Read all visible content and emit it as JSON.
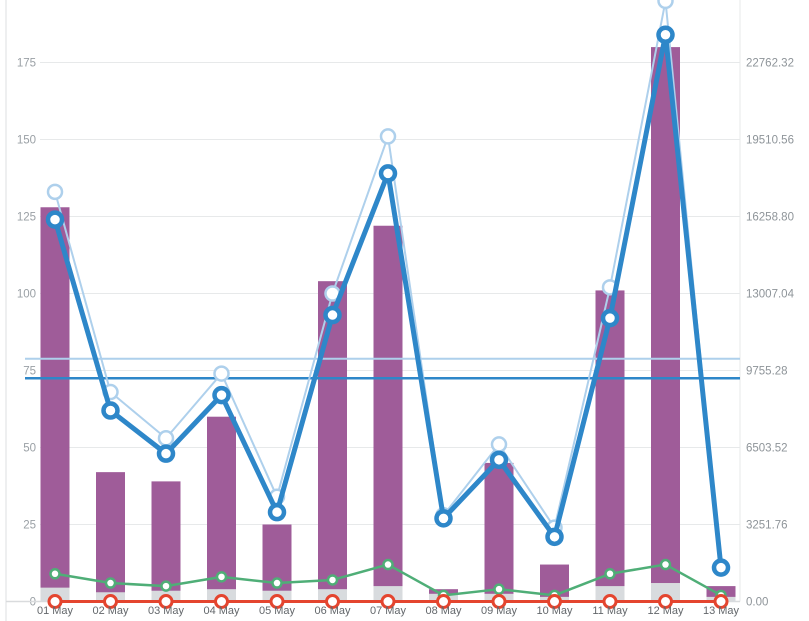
{
  "chart_data": {
    "type": "combo",
    "title": "",
    "legend": "none",
    "grid": true,
    "categories": [
      "01 May",
      "02 May",
      "03 May",
      "04 May",
      "05 May",
      "06 May",
      "07 May",
      "08 May",
      "09 May",
      "10 May",
      "11 May",
      "12 May",
      "13 May"
    ],
    "left_axis": {
      "ticks": [
        "0",
        "25",
        "50",
        "75",
        "100",
        "125",
        "150",
        "175"
      ],
      "tick_values": [
        0,
        25,
        50,
        75,
        100,
        125,
        150,
        175
      ],
      "visible_range": [
        0,
        195
      ]
    },
    "right_axis": {
      "labels": [
        "0.00",
        "3251.76",
        "6503.52",
        "9755.28",
        "13007.04",
        "16258.80",
        "19510.56",
        "22762.32"
      ],
      "units_per_left_unit": 130.07
    },
    "series": [
      {
        "id": "bars-primary",
        "name": "primary-bars",
        "type": "bar",
        "axis": "left",
        "color": "#9f5c99",
        "values": [
          128,
          42,
          39,
          60,
          25,
          104,
          122,
          4,
          45,
          12,
          101,
          180,
          5
        ]
      },
      {
        "id": "bars-secondary",
        "name": "secondary-bars",
        "type": "bar",
        "axis": "left",
        "color": "#d8dbde",
        "values": [
          4.5,
          3,
          3.5,
          4,
          3.5,
          4,
          5,
          2.5,
          2.5,
          1.5,
          5,
          6,
          1.5
        ]
      },
      {
        "id": "line-light-blue",
        "name": "light-blue-line",
        "type": "line",
        "axis": "left",
        "color": "#aed0ec",
        "marker": "open-circle",
        "values": [
          133,
          68,
          53,
          74,
          34,
          100,
          151,
          28,
          51,
          24,
          102,
          195,
          11
        ],
        "average_line": 78.8
      },
      {
        "id": "line-blue",
        "name": "blue-line",
        "type": "line",
        "axis": "left",
        "color": "#2e87c9",
        "marker": "open-circle",
        "values": [
          124,
          62,
          48,
          67,
          29,
          93,
          139,
          27,
          46,
          21,
          92,
          184,
          11
        ],
        "average_line": 72.5
      },
      {
        "id": "line-green",
        "name": "green-line",
        "type": "line",
        "axis": "left",
        "color": "#4fae77",
        "marker": "open-circle",
        "values": [
          9,
          6,
          5,
          8,
          6,
          7,
          12,
          2,
          4,
          2,
          9,
          12,
          2
        ]
      },
      {
        "id": "line-red",
        "name": "red-zero-line",
        "type": "line",
        "axis": "left",
        "color": "#e4452f",
        "marker": "open-circle",
        "values": [
          0,
          0,
          0,
          0,
          0,
          0,
          0,
          0,
          0,
          0,
          0,
          0,
          0
        ]
      }
    ],
    "colors": {
      "gridline": "#e7e9ea",
      "axis_line": "#dddfe1",
      "left_tick_label": "#9aa0a5",
      "right_tick_label": "#8e9499",
      "x_tick_label": "#63676b",
      "background": "#ffffff"
    }
  }
}
